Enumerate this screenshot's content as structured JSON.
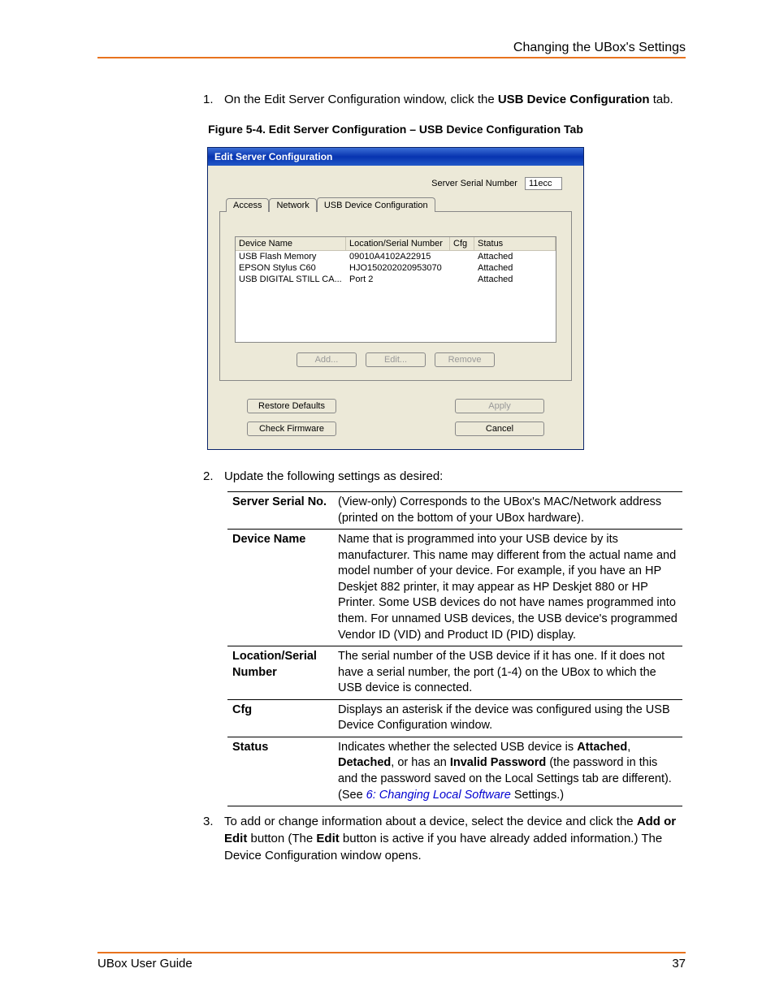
{
  "header": {
    "section_title": "Changing the UBox's Settings"
  },
  "footer": {
    "guide": "UBox User Guide",
    "page": "37"
  },
  "steps": {
    "s1_num": "1.",
    "s1_pre": "On the Edit Server Configuration window, click the ",
    "s1_bold": "USB Device Configuration",
    "s1_post": " tab.",
    "fig_caption": "Figure 5-4. Edit Server Configuration – USB Device Configuration Tab",
    "s2_num": "2.",
    "s2_text": "Update the following settings as desired:",
    "s3_num": "3.",
    "s3_p1": "To add or change information about a device, select the device and click the ",
    "s3_b1": "Add or Edit",
    "s3_p2": " button (The ",
    "s3_b2": "Edit",
    "s3_p3": " button is active if you have already added information.) The Device Configuration window opens."
  },
  "dialog": {
    "title": "Edit Server Configuration",
    "serial_label": "Server Serial Number",
    "serial_value": "11ecc",
    "tabs": {
      "access": "Access",
      "network": "Network",
      "usb": "USB Device Configuration"
    },
    "columns": {
      "name": "Device Name",
      "loc": "Location/Serial Number",
      "cfg": "Cfg",
      "status": "Status"
    },
    "rows": [
      {
        "name": "USB Flash Memory",
        "loc": "09010A4102A22915",
        "cfg": "",
        "status": "Attached"
      },
      {
        "name": "EPSON Stylus C60",
        "loc": "HJO150202020953070",
        "cfg": "",
        "status": "Attached"
      },
      {
        "name": "USB DIGITAL STILL CA...",
        "loc": "Port 2",
        "cfg": "",
        "status": "Attached"
      }
    ],
    "btn_add": "Add...",
    "btn_edit": "Edit...",
    "btn_remove": "Remove",
    "btn_restore": "Restore Defaults",
    "btn_check": "Check Firmware",
    "btn_apply": "Apply",
    "btn_cancel": "Cancel"
  },
  "settings": {
    "r1_label": "Server Serial No.",
    "r1_desc": "(View-only) Corresponds to the UBox's MAC/Network address (printed on the bottom of your UBox hardware).",
    "r2_label": "Device Name",
    "r2_desc": "Name that is programmed into your USB device by its manufacturer. This name may different from the actual name and model number of your device. For example, if you have an HP Deskjet 882 printer, it may appear as HP Deskjet 880 or HP Printer. Some USB devices do not have names programmed into them. For unnamed USB devices, the USB device's programmed Vendor ID (VID) and Product ID (PID) display.",
    "r3_label": "Location/Serial Number",
    "r3_desc": "The serial number of the USB device if it has one. If it does not have a serial number, the port (1-4) on the UBox to which the USB device is connected.",
    "r4_label": "Cfg",
    "r4_desc": "Displays an asterisk if the device was configured using the USB Device Configuration window.",
    "r5_label": "Status",
    "r5_p1": "Indicates whether the selected USB device is ",
    "r5_b1": "Attached",
    "r5_p2": ", ",
    "r5_b2": "Detached",
    "r5_p3": ", or has an ",
    "r5_b3": "Invalid Password",
    "r5_p4": " (the password in this and the password saved on the Local Settings tab are different). (See ",
    "r5_link": "6: Changing Local Software",
    "r5_p5": " Settings.)"
  }
}
